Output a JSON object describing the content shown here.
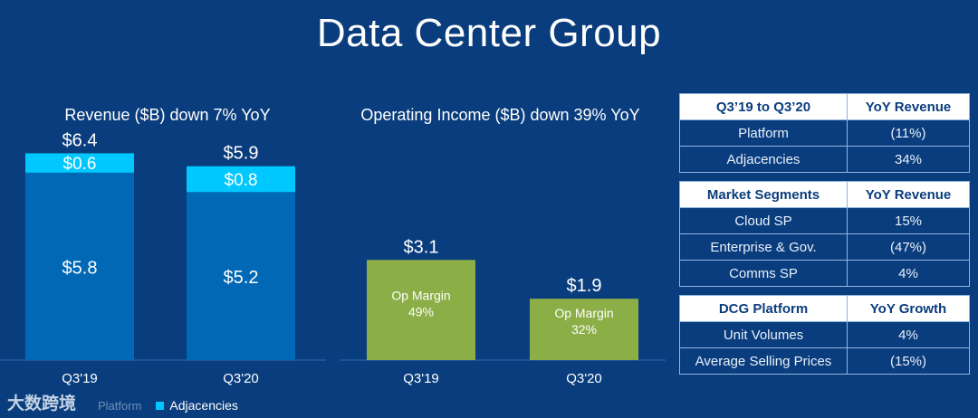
{
  "page_title": "Data Center Group",
  "watermark": "大数跨境",
  "chart_data": [
    {
      "type": "bar",
      "stacked": true,
      "title": "Revenue ($B) down 7% YoY",
      "categories": [
        "Q3'19",
        "Q3'20"
      ],
      "series": [
        {
          "name": "Platform",
          "values": [
            5.8,
            5.2
          ],
          "labels": [
            "$5.8",
            "$5.2"
          ],
          "color": "#0068b5"
        },
        {
          "name": "Adjacencies",
          "values": [
            0.6,
            0.8
          ],
          "labels": [
            "$0.6",
            "$0.8"
          ],
          "color": "#00c7fd"
        }
      ],
      "totals": [
        "$6.4",
        "$5.9"
      ],
      "ylim": [
        0,
        7
      ],
      "legend": {
        "position": "bottom-left",
        "items": [
          "Platform",
          "Adjacencies"
        ]
      }
    },
    {
      "type": "bar",
      "title": "Operating Income ($B) down 39% YoY",
      "categories": [
        "Q3'19",
        "Q3'20"
      ],
      "values": [
        3.1,
        1.9
      ],
      "value_labels": [
        "$3.1",
        "$1.9"
      ],
      "annotations": [
        {
          "label": "Op Margin",
          "value": "49%"
        },
        {
          "label": "Op Margin",
          "value": "32%"
        }
      ],
      "color": "#8bae46",
      "ylim": [
        0,
        7
      ]
    }
  ],
  "tables": [
    {
      "header": [
        "Q3’19 to Q3’20",
        "YoY Revenue"
      ],
      "rows": [
        [
          "Platform",
          "(11%)"
        ],
        [
          "Adjacencies",
          "34%"
        ]
      ]
    },
    {
      "header": [
        "Market Segments",
        "YoY Revenue"
      ],
      "rows": [
        [
          "Cloud SP",
          "15%"
        ],
        [
          "Enterprise & Gov.",
          "(47%)"
        ],
        [
          "Comms SP",
          "4%"
        ]
      ]
    },
    {
      "header": [
        "DCG Platform",
        "YoY Growth"
      ],
      "rows": [
        [
          "Unit Volumes",
          "4%"
        ],
        [
          "Average Selling Prices",
          "(15%)"
        ]
      ]
    }
  ]
}
